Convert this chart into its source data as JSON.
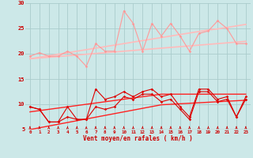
{
  "title": "",
  "xlabel": "Vent moyen/en rafales ( km/h )",
  "bg_color": "#cce8e8",
  "grid_color": "#aacccc",
  "x": [
    0,
    1,
    2,
    3,
    4,
    5,
    6,
    7,
    8,
    9,
    10,
    11,
    12,
    13,
    14,
    15,
    16,
    17,
    18,
    19,
    20,
    21,
    22,
    23
  ],
  "pink_line1": [
    19.5,
    20.2,
    19.5,
    19.5,
    20.5,
    19.5,
    17.5,
    22.0,
    20.5,
    20.5,
    28.5,
    26.0,
    20.5,
    26.0,
    23.5,
    26.0,
    23.5,
    20.5,
    24.0,
    24.5,
    26.5,
    25.0,
    22.0,
    22.0
  ],
  "pink_trend1": [
    19.0,
    19.3,
    19.6,
    19.9,
    20.2,
    20.5,
    20.8,
    21.1,
    21.4,
    21.7,
    22.0,
    22.3,
    22.6,
    22.9,
    23.2,
    23.5,
    23.8,
    24.1,
    24.4,
    24.7,
    24.9,
    25.2,
    25.5,
    25.8
  ],
  "pink_trend2": [
    19.0,
    19.15,
    19.3,
    19.45,
    19.6,
    19.75,
    19.9,
    20.05,
    20.2,
    20.35,
    20.5,
    20.65,
    20.8,
    20.95,
    21.1,
    21.25,
    21.4,
    21.55,
    21.7,
    21.85,
    22.0,
    22.15,
    22.3,
    22.45
  ],
  "red_line1": [
    9.5,
    9.0,
    6.5,
    6.5,
    9.5,
    7.0,
    7.0,
    13.0,
    11.0,
    11.5,
    12.5,
    11.5,
    12.5,
    13.0,
    11.5,
    12.0,
    9.5,
    7.5,
    13.0,
    13.0,
    11.0,
    11.5,
    7.5,
    11.5
  ],
  "red_trend1": [
    8.5,
    8.75,
    9.0,
    9.25,
    9.5,
    9.75,
    10.0,
    10.25,
    10.5,
    10.75,
    11.0,
    11.25,
    11.5,
    11.75,
    12.0,
    12.0,
    12.0,
    12.0,
    12.0,
    12.0,
    12.0,
    12.0,
    12.0,
    12.0
  ],
  "red_trend2": [
    5.0,
    5.35,
    5.7,
    6.05,
    6.4,
    6.75,
    7.1,
    7.45,
    7.8,
    8.15,
    8.5,
    8.85,
    9.2,
    9.55,
    9.9,
    10.0,
    10.1,
    10.2,
    10.3,
    10.4,
    10.5,
    10.6,
    10.7,
    10.8
  ],
  "red_line2": [
    9.5,
    9.0,
    6.5,
    6.5,
    7.5,
    7.0,
    7.0,
    9.5,
    9.0,
    9.5,
    11.5,
    11.0,
    12.0,
    12.0,
    10.5,
    11.0,
    9.0,
    7.0,
    12.5,
    12.5,
    10.5,
    11.0,
    7.5,
    11.0
  ],
  "ylim": [
    5,
    30
  ],
  "yticks": [
    5,
    10,
    15,
    20,
    25,
    30
  ],
  "xlim": [
    -0.5,
    23.5
  ]
}
